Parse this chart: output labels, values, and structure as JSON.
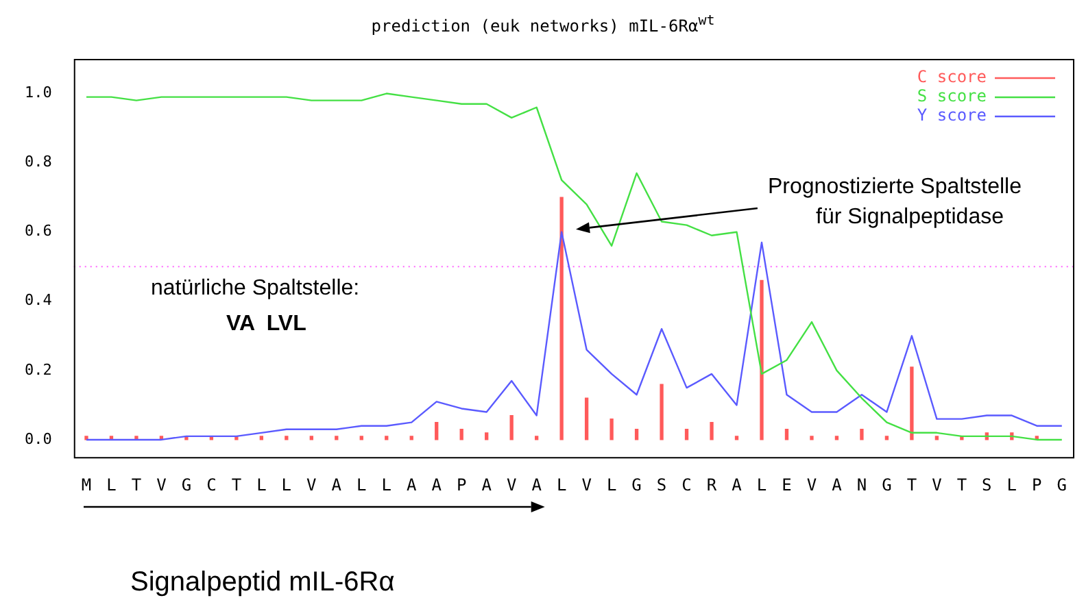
{
  "chart_data": {
    "type": "line",
    "title": "prediction (euk networks) mIL-6Rα$^{wt}$",
    "categories": [
      "M",
      "L",
      "T",
      "V",
      "G",
      "C",
      "T",
      "L",
      "L",
      "V",
      "A",
      "L",
      "L",
      "A",
      "A",
      "P",
      "A",
      "V",
      "A",
      "L",
      "V",
      "L",
      "G",
      "S",
      "C",
      "R",
      "A",
      "L",
      "E",
      "V",
      "A",
      "N",
      "G",
      "T",
      "V",
      "T",
      "S",
      "L",
      "P",
      "G"
    ],
    "series": [
      {
        "name": "C score",
        "type": "bar",
        "color": "#ff5a5a",
        "values": [
          0.01,
          0.01,
          0.01,
          0.01,
          0.01,
          0.01,
          0.01,
          0.01,
          0.01,
          0.01,
          0.01,
          0.01,
          0.01,
          0.01,
          0.05,
          0.03,
          0.02,
          0.07,
          0.01,
          0.7,
          0.12,
          0.06,
          0.03,
          0.16,
          0.03,
          0.05,
          0.01,
          0.46,
          0.03,
          0.01,
          0.01,
          0.03,
          0.01,
          0.21,
          0.01,
          0.01,
          0.02,
          0.02,
          0.01,
          null
        ]
      },
      {
        "name": "S score",
        "color": "#44e044",
        "values": [
          0.99,
          0.99,
          0.98,
          0.99,
          0.99,
          0.99,
          0.99,
          0.99,
          0.99,
          0.98,
          0.98,
          0.98,
          1.0,
          0.99,
          0.98,
          0.97,
          0.97,
          0.93,
          0.96,
          0.75,
          0.68,
          0.56,
          0.77,
          0.63,
          0.62,
          0.59,
          0.6,
          0.19,
          0.23,
          0.34,
          0.2,
          0.12,
          0.05,
          0.02,
          0.02,
          0.01,
          0.01,
          0.01,
          0.0,
          0.0
        ]
      },
      {
        "name": "Y score",
        "color": "#5a5aff",
        "values": [
          0.0,
          0.0,
          0.0,
          0.0,
          0.01,
          0.01,
          0.01,
          0.02,
          0.03,
          0.03,
          0.03,
          0.04,
          0.04,
          0.05,
          0.11,
          0.09,
          0.08,
          0.17,
          0.07,
          0.6,
          0.26,
          0.19,
          0.13,
          0.32,
          0.15,
          0.19,
          0.1,
          0.57,
          0.13,
          0.08,
          0.08,
          0.13,
          0.08,
          0.3,
          0.06,
          0.06,
          0.07,
          0.07,
          0.04,
          0.04
        ]
      }
    ],
    "ylim": [
      -0.05,
      1.1
    ],
    "yticks": [
      {
        "value": 0,
        "label": "0.0"
      },
      {
        "value": 0.2,
        "label": "0.2"
      },
      {
        "value": 0.4,
        "label": "0.4"
      },
      {
        "value": 0.6,
        "label": "0.6"
      },
      {
        "value": 0.8,
        "label": "0.8"
      },
      {
        "value": 1,
        "label": "1.0"
      }
    ],
    "ref_lines": [
      {
        "axis": "y",
        "value": 0.5,
        "color": "#ff66ff",
        "line_style": "dotted"
      }
    ],
    "annotations": [
      "natürliche Spaltstelle:",
      "VA  LVL",
      "Prognostizierte Spaltstelle",
      "für Signalpeptidase",
      "Signalpeptid mIL-6Rα"
    ],
    "legend": "top right",
    "grid": false,
    "marker": "none",
    "line_style": "solid"
  }
}
